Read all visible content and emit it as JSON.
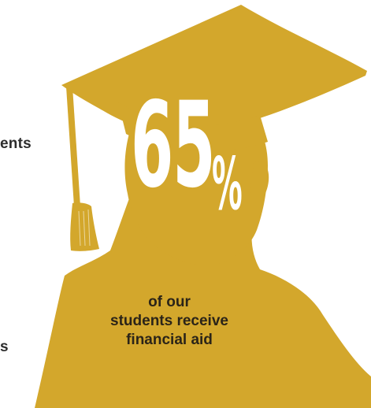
{
  "colors": {
    "silhouette": "#d3a72c",
    "stat_text": "#ffffff",
    "caption_text": "#2b2418",
    "edge_text": "#2d2d2d",
    "background": "#ffffff"
  },
  "left_edge_text": {
    "top_fragment": "ents",
    "bottom_fragment": "s"
  },
  "stat": {
    "value": "65",
    "unit": "%",
    "caption_lines": [
      "of our",
      "students receive",
      "financial aid"
    ]
  },
  "icons": {
    "figure": "graduate-silhouette-icon"
  }
}
